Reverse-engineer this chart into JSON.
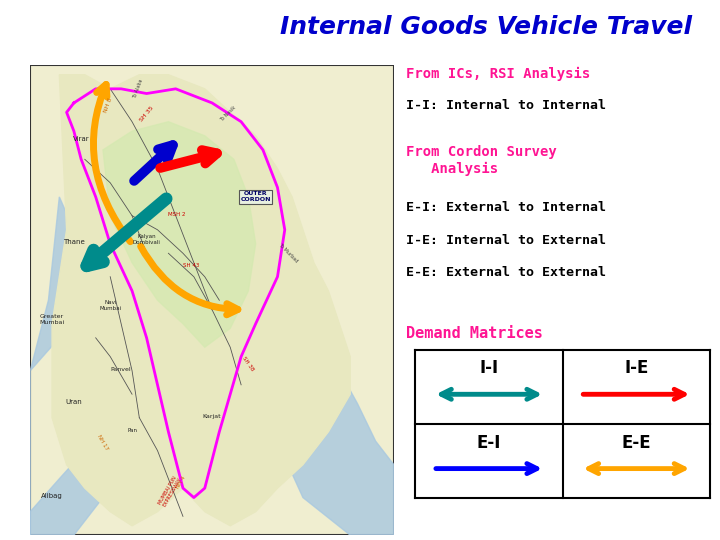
{
  "title": "Internal Goods Vehicle Travel",
  "title_color": "#0000CC",
  "title_fontsize": 18,
  "text1_label": "From ICs, RSI Analysis",
  "text1_color": "#FF1493",
  "text1_sub": "I-I: Internal to Internal",
  "text1_sub_color": "#000000",
  "text2_label": "From Cordon Survey\n   Analysis",
  "text2_color": "#FF1493",
  "text2_lines": [
    "E-I: External to Internal",
    "I-E: Internal to External",
    "E-E: External to External"
  ],
  "text2_color2": "#000000",
  "demand_label": "Demand Matrices",
  "demand_color": "#FF1493",
  "cells": [
    {
      "label": "I-I",
      "arrow_color": "#008B8B",
      "arrow_type": "both",
      "row": 0,
      "col": 0
    },
    {
      "label": "I-E",
      "arrow_color": "#FF0000",
      "arrow_type": "right",
      "row": 0,
      "col": 1
    },
    {
      "label": "E-I",
      "arrow_color": "#0000FF",
      "arrow_type": "right",
      "row": 1,
      "col": 0
    },
    {
      "label": "E-E",
      "arrow_color": "#FFA500",
      "arrow_type": "both",
      "row": 1,
      "col": 1
    }
  ],
  "bg_color": "#FFFFFF",
  "map_bg": "#F0EED0",
  "map_border": "#333333",
  "water_color": "#A8C8E0",
  "land_color": "#E8E8C0",
  "inner_color": "#D4E8B0",
  "cordon_color": "#FF00FF",
  "arrow_orange": "#FFA500",
  "arrow_blue": "#0000CD",
  "arrow_red": "#FF0000",
  "arrow_teal": "#008B8B"
}
